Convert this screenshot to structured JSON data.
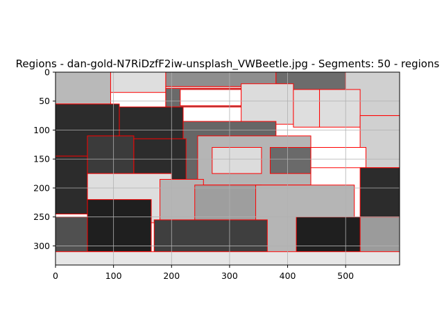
{
  "chart_data": {
    "type": "heatmap",
    "title": "Regions - dan-gold-N7RiDzfF2iw-unsplash_VWBeetle.jpg - Segments: 50 - regions",
    "xlabel": "",
    "ylabel": "",
    "xlim": [
      0,
      593
    ],
    "ylim": [
      333,
      0
    ],
    "x_ticks": [
      0,
      100,
      200,
      300,
      400,
      500
    ],
    "y_ticks": [
      0,
      50,
      100,
      150,
      200,
      250,
      300
    ],
    "grid": true,
    "boundary_color": "#ff0000",
    "regions": [
      {
        "gray": "#b9b9b9",
        "points": [
          [
            0,
            0
          ],
          [
            95,
            0
          ],
          [
            95,
            55
          ],
          [
            0,
            55
          ]
        ]
      },
      {
        "gray": "#dedede",
        "points": [
          [
            95,
            0
          ],
          [
            190,
            0
          ],
          [
            190,
            35
          ],
          [
            95,
            35
          ]
        ]
      },
      {
        "gray": "#8e8e8e",
        "points": [
          [
            190,
            0
          ],
          [
            380,
            0
          ],
          [
            380,
            25
          ],
          [
            190,
            25
          ]
        ]
      },
      {
        "gray": "#dedede",
        "points": [
          [
            190,
            25
          ],
          [
            380,
            25
          ],
          [
            380,
            60
          ],
          [
            190,
            60
          ]
        ]
      },
      {
        "gray": "#6c6c6c",
        "points": [
          [
            380,
            0
          ],
          [
            500,
            0
          ],
          [
            500,
            30
          ],
          [
            380,
            30
          ]
        ]
      },
      {
        "gray": "#d0d0d0",
        "points": [
          [
            500,
            0
          ],
          [
            593,
            0
          ],
          [
            593,
            75
          ],
          [
            500,
            75
          ]
        ]
      },
      {
        "gray": "#6a6a6a",
        "points": [
          [
            190,
            28
          ],
          [
            320,
            28
          ],
          [
            320,
            60
          ],
          [
            190,
            60
          ]
        ]
      },
      {
        "gray": "#ffffff",
        "points": [
          [
            215,
            30
          ],
          [
            320,
            30
          ],
          [
            320,
            58
          ],
          [
            215,
            58
          ]
        ]
      },
      {
        "gray": "#dcdcdc",
        "points": [
          [
            320,
            20
          ],
          [
            410,
            20
          ],
          [
            410,
            90
          ],
          [
            320,
            90
          ]
        ]
      },
      {
        "gray": "#dedede",
        "points": [
          [
            410,
            30
          ],
          [
            455,
            30
          ],
          [
            455,
            95
          ],
          [
            410,
            95
          ]
        ]
      },
      {
        "gray": "#dedede",
        "points": [
          [
            455,
            30
          ],
          [
            525,
            30
          ],
          [
            525,
            95
          ],
          [
            455,
            95
          ]
        ]
      },
      {
        "gray": "#d0d0d0",
        "points": [
          [
            525,
            75
          ],
          [
            593,
            75
          ],
          [
            593,
            165
          ],
          [
            525,
            165
          ]
        ]
      },
      {
        "gray": "#2c2c2c",
        "points": [
          [
            0,
            55
          ],
          [
            110,
            55
          ],
          [
            110,
            145
          ],
          [
            0,
            145
          ]
        ]
      },
      {
        "gray": "#2c2c2c",
        "points": [
          [
            110,
            60
          ],
          [
            220,
            60
          ],
          [
            220,
            120
          ],
          [
            110,
            120
          ]
        ]
      },
      {
        "gray": "#ffffff",
        "points": [
          [
            440,
            130
          ],
          [
            535,
            130
          ],
          [
            535,
            165
          ],
          [
            440,
            165
          ]
        ]
      },
      {
        "gray": "#666666",
        "points": [
          [
            220,
            85
          ],
          [
            380,
            85
          ],
          [
            380,
            195
          ],
          [
            220,
            195
          ]
        ]
      },
      {
        "gray": "#b5b5b5",
        "points": [
          [
            245,
            110
          ],
          [
            440,
            110
          ],
          [
            440,
            195
          ],
          [
            245,
            195
          ]
        ]
      },
      {
        "gray": "#dcdcdc",
        "points": [
          [
            270,
            130
          ],
          [
            355,
            130
          ],
          [
            355,
            175
          ],
          [
            270,
            175
          ]
        ]
      },
      {
        "gray": "#6a6a6a",
        "points": [
          [
            370,
            130
          ],
          [
            440,
            130
          ],
          [
            440,
            175
          ],
          [
            370,
            175
          ]
        ]
      },
      {
        "gray": "#2c2c2c",
        "points": [
          [
            525,
            165
          ],
          [
            593,
            165
          ],
          [
            593,
            250
          ],
          [
            525,
            250
          ]
        ]
      },
      {
        "gray": "#2c2c2c",
        "points": [
          [
            0,
            145
          ],
          [
            55,
            145
          ],
          [
            55,
            245
          ],
          [
            0,
            245
          ]
        ]
      },
      {
        "gray": "#3b3b3b",
        "points": [
          [
            55,
            110
          ],
          [
            135,
            110
          ],
          [
            135,
            225
          ],
          [
            55,
            225
          ]
        ]
      },
      {
        "gray": "#2c2c2c",
        "points": [
          [
            135,
            115
          ],
          [
            225,
            115
          ],
          [
            225,
            195
          ],
          [
            135,
            195
          ]
        ]
      },
      {
        "gray": "#dedede",
        "points": [
          [
            55,
            175
          ],
          [
            200,
            175
          ],
          [
            200,
            260
          ],
          [
            55,
            260
          ]
        ]
      },
      {
        "gray": "#b5b5b5",
        "points": [
          [
            180,
            185
          ],
          [
            255,
            185
          ],
          [
            255,
            310
          ],
          [
            180,
            310
          ]
        ]
      },
      {
        "gray": "#9e9e9e",
        "points": [
          [
            240,
            195
          ],
          [
            355,
            195
          ],
          [
            355,
            330
          ],
          [
            240,
            330
          ]
        ]
      },
      {
        "gray": "#b5b5b5",
        "points": [
          [
            345,
            195
          ],
          [
            515,
            195
          ],
          [
            515,
            330
          ],
          [
            345,
            330
          ]
        ]
      },
      {
        "gray": "#505050",
        "points": [
          [
            0,
            250
          ],
          [
            60,
            250
          ],
          [
            60,
            320
          ],
          [
            0,
            320
          ]
        ]
      },
      {
        "gray": "#1f1f1f",
        "points": [
          [
            55,
            220
          ],
          [
            165,
            220
          ],
          [
            165,
            310
          ],
          [
            55,
            310
          ]
        ]
      },
      {
        "gray": "#1f1f1f",
        "points": [
          [
            415,
            250
          ],
          [
            530,
            250
          ],
          [
            530,
            330
          ],
          [
            415,
            330
          ]
        ]
      },
      {
        "gray": "#3f3f3f",
        "points": [
          [
            170,
            255
          ],
          [
            365,
            255
          ],
          [
            365,
            333
          ],
          [
            170,
            333
          ]
        ]
      },
      {
        "gray": "#9b9b9b",
        "points": [
          [
            525,
            250
          ],
          [
            593,
            250
          ],
          [
            593,
            333
          ],
          [
            525,
            333
          ]
        ]
      },
      {
        "gray": "#e6e6e6",
        "points": [
          [
            0,
            310
          ],
          [
            593,
            310
          ],
          [
            593,
            333
          ],
          [
            0,
            333
          ]
        ]
      }
    ]
  }
}
